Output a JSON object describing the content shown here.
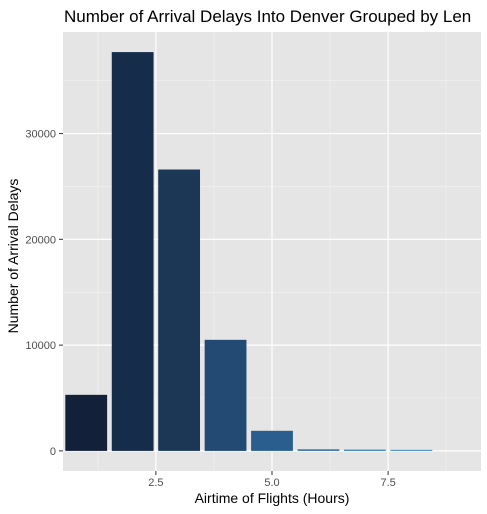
{
  "chart_data": {
    "type": "bar",
    "title": "Number of Arrival Delays Into Denver Grouped by Len",
    "xlabel": "Airtime of Flights (Hours)",
    "ylabel": "Number of Arrival Delays",
    "x_centers": [
      1,
      2,
      3,
      4,
      5,
      6,
      7,
      8,
      9
    ],
    "values": [
      5300,
      37700,
      26600,
      10500,
      1900,
      150,
      120,
      100,
      0
    ],
    "xlim": [
      0.5,
      9.5
    ],
    "ylim": [
      -1900,
      39600
    ],
    "x_ticks": [
      2.5,
      5.0,
      7.5
    ],
    "x_tick_labels": [
      "2.5",
      "5.0",
      "7.5"
    ],
    "y_ticks": [
      0,
      10000,
      20000,
      30000
    ],
    "y_tick_labels": [
      "0",
      "10000",
      "20000",
      "30000"
    ],
    "colors": {
      "panel_bg": "#e5e5e5",
      "grid_major": "#ffffff",
      "bar_low": "#132B43",
      "bar_high": "#56B1F7"
    },
    "bar_colors": [
      "#12203a",
      "#152c4a",
      "#1c3656",
      "#224a72",
      "#2a5e8e",
      "#3270a6",
      "#3a7eba",
      "#4288c8",
      "#4a95d6"
    ],
    "grid": true,
    "legend": "none"
  }
}
